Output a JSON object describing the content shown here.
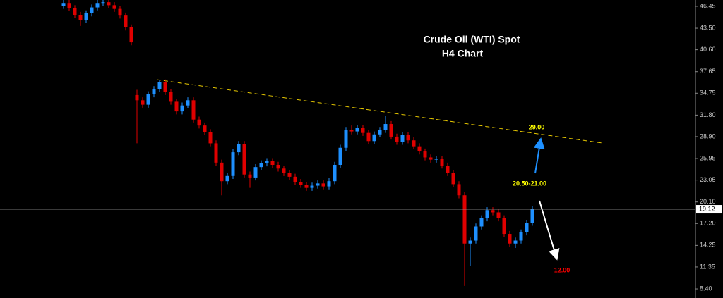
{
  "chart_data": {
    "type": "candlestick",
    "title": "Crude Oil (WTI) Spot",
    "subtitle": "H4 Chart",
    "up_color": "#1e90ff",
    "down_color": "#e00000",
    "ylim": [
      7.17,
      47.3
    ],
    "yticks": [
      46.45,
      {
        "value": 43.5,
        "label": "43.50"
      },
      {
        "value": 40.6,
        "label": "40.60"
      },
      37.65,
      34.75,
      {
        "value": 31.8,
        "label": "31.80"
      },
      {
        "value": 28.9,
        "label": "28.90"
      },
      25.95,
      23.05,
      {
        "value": 20.1,
        "label": "20.10"
      },
      {
        "value": 17.2,
        "label": "17.20"
      },
      14.25,
      11.35,
      {
        "value": 8.4,
        "label": "8.40"
      }
    ],
    "open": [
      46.5,
      46.9,
      46.2,
      45.3,
      44.6,
      45.5,
      46.3,
      46.9,
      47.0,
      46.6,
      46.1,
      45.2,
      43.6,
      34.5,
      33.8,
      33.2,
      34.6,
      35.3,
      36.2,
      34.9,
      33.6,
      32.3,
      33.1,
      33.8,
      31.2,
      30.4,
      29.5,
      28.0,
      25.4,
      22.9,
      23.6,
      26.8,
      27.9,
      23.8,
      23.4,
      24.8,
      25.3,
      25.6,
      25.1,
      24.6,
      24.0,
      23.5,
      22.8,
      22.4,
      22.0,
      22.3,
      22.6,
      22.2,
      22.9,
      25.1,
      27.4,
      29.8,
      29.6,
      30.1,
      29.4,
      28.3,
      29.2,
      29.8,
      30.6,
      28.9,
      28.2,
      29.1,
      28.4,
      27.6,
      26.9,
      26.1,
      25.8,
      25.9,
      25.0,
      24.0,
      22.5,
      21.0,
      14.5,
      14.9,
      16.8,
      17.9,
      19.0,
      18.7,
      17.9,
      15.8,
      14.5,
      14.9,
      16.0,
      17.3
    ],
    "high": [
      47.3,
      47.3,
      46.6,
      45.7,
      45.9,
      46.7,
      47.3,
      47.4,
      47.4,
      47.0,
      46.5,
      45.6,
      44.0,
      35.2,
      34.2,
      35.0,
      35.7,
      36.5,
      36.6,
      35.3,
      34.0,
      33.5,
      34.2,
      34.2,
      31.6,
      30.8,
      29.9,
      28.4,
      25.8,
      24.0,
      27.2,
      28.3,
      28.3,
      24.2,
      25.2,
      25.7,
      26.0,
      26.0,
      25.5,
      25.0,
      24.4,
      23.9,
      23.2,
      22.8,
      22.7,
      23.0,
      23.0,
      23.3,
      25.5,
      27.8,
      30.2,
      30.4,
      30.5,
      30.5,
      29.8,
      29.6,
      30.2,
      31.7,
      31.0,
      29.3,
      29.5,
      29.5,
      28.8,
      28.0,
      27.3,
      26.5,
      26.3,
      26.3,
      25.4,
      24.4,
      22.9,
      21.4,
      15.3,
      17.2,
      18.3,
      19.4,
      19.4,
      19.1,
      18.3,
      16.2,
      15.3,
      16.4,
      17.7,
      19.5
    ],
    "low": [
      46.1,
      45.8,
      44.9,
      43.8,
      44.2,
      45.1,
      45.9,
      46.5,
      46.2,
      45.7,
      44.8,
      43.2,
      41.2,
      28.0,
      32.8,
      32.8,
      34.2,
      34.9,
      34.5,
      33.2,
      31.9,
      31.9,
      32.7,
      30.8,
      30.0,
      29.1,
      27.6,
      25.0,
      21.0,
      22.5,
      23.2,
      26.4,
      23.4,
      22.0,
      23.0,
      24.4,
      24.9,
      24.7,
      24.2,
      23.6,
      23.1,
      22.4,
      22.0,
      21.6,
      21.6,
      21.9,
      21.8,
      21.8,
      22.5,
      24.7,
      27.0,
      29.2,
      29.2,
      29.0,
      27.9,
      27.9,
      28.8,
      29.4,
      28.5,
      27.8,
      27.8,
      28.0,
      27.2,
      26.5,
      25.7,
      25.4,
      25.4,
      24.6,
      23.6,
      22.1,
      20.6,
      8.8,
      11.5,
      14.5,
      16.4,
      17.5,
      18.3,
      17.5,
      15.4,
      14.1,
      13.9,
      14.5,
      15.6,
      16.9
    ],
    "close": [
      46.9,
      46.2,
      45.3,
      44.6,
      45.5,
      46.3,
      46.9,
      47.0,
      46.6,
      46.1,
      45.2,
      43.6,
      41.6,
      33.8,
      33.2,
      34.6,
      35.3,
      36.2,
      34.9,
      33.6,
      32.3,
      33.1,
      33.8,
      31.2,
      30.4,
      29.5,
      28.0,
      25.4,
      22.9,
      23.6,
      26.8,
      27.9,
      23.8,
      23.4,
      24.8,
      25.3,
      25.6,
      25.1,
      24.6,
      24.0,
      23.5,
      22.8,
      22.4,
      22.0,
      22.3,
      22.6,
      22.2,
      22.9,
      25.1,
      27.4,
      29.8,
      29.6,
      30.1,
      29.4,
      28.3,
      29.2,
      29.8,
      30.6,
      28.9,
      28.2,
      29.1,
      28.4,
      27.6,
      26.9,
      26.1,
      25.8,
      25.9,
      25.0,
      24.0,
      22.5,
      21.0,
      14.5,
      14.9,
      16.8,
      17.9,
      19.0,
      18.7,
      17.9,
      15.8,
      14.5,
      14.9,
      16.0,
      17.3,
      19.12
    ],
    "annotations": [
      {
        "text": "29.00",
        "color": "#ffff00"
      },
      {
        "text": "20.50-21.00",
        "color": "#ffff00"
      },
      {
        "text": "12.00",
        "color": "#ff0000"
      }
    ]
  }
}
